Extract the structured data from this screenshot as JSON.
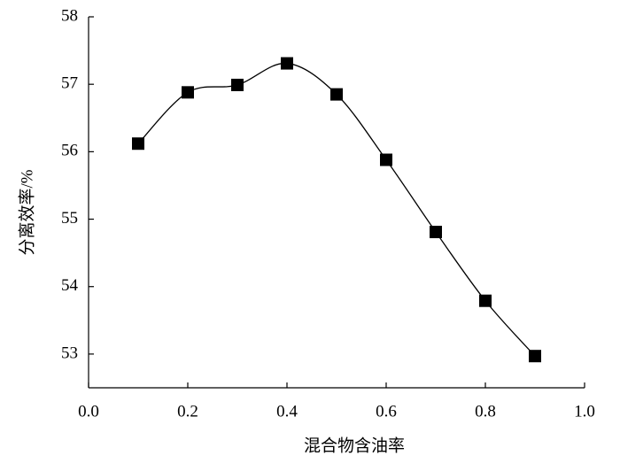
{
  "chart_data": {
    "type": "line",
    "x_label": "混合物含油率",
    "y_label": "分离效率/%",
    "x": [
      0.1,
      0.2,
      0.3,
      0.4,
      0.5,
      0.6,
      0.7,
      0.8,
      0.9
    ],
    "series": [
      {
        "color": "#000000",
        "values": [
          56.12,
          56.88,
          56.99,
          57.31,
          56.85,
          55.88,
          54.81,
          53.79,
          52.97
        ]
      }
    ],
    "xlim": [
      0,
      1
    ],
    "xticks": [
      {
        "value": 0,
        "label": "0.0"
      },
      0.2,
      0.4,
      0.6,
      0.8,
      {
        "value": 1,
        "label": "1.0"
      }
    ],
    "ylim": [
      52.5,
      58
    ],
    "yticks": [
      53,
      54,
      55,
      56,
      57,
      58
    ],
    "smooth": true,
    "marker": "square"
  }
}
